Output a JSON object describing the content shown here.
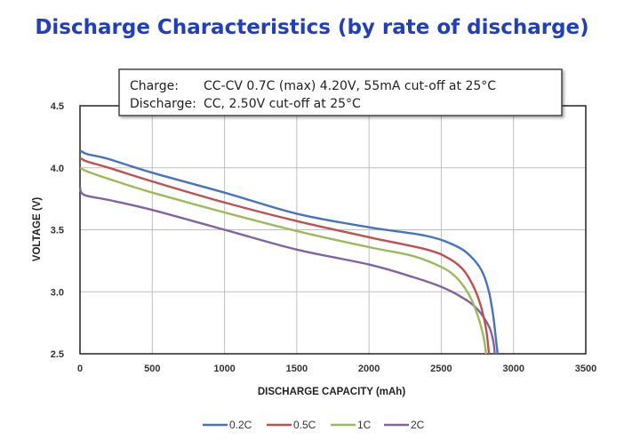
{
  "page_title": "Discharge Characteristics (by rate of discharge)",
  "note": {
    "line1_label": "Charge:",
    "line1_value": "CC-CV 0.7C (max) 4.20V, 55mA cut-off at 25°C",
    "line2_label": "Discharge:",
    "line2_value": "CC, 2.50V cut-off at 25°C"
  },
  "chart_data": {
    "type": "line",
    "title": "Discharge Characteristics (by rate of discharge)",
    "xlabel": "DISCHARGE CAPACITY (mAh)",
    "ylabel": "VOLTAGE (V)",
    "xlim": [
      0,
      3500
    ],
    "ylim": [
      2.5,
      4.5
    ],
    "xticks": [
      "0",
      "500",
      "1000",
      "1500",
      "2000",
      "2500",
      "3000",
      "3500"
    ],
    "yticks": [
      "2.5",
      "3.0",
      "3.5",
      "4.0",
      "4.5"
    ],
    "grid": true,
    "legend_position": "bottom",
    "series": [
      {
        "name": "0.2C",
        "color": "#4472c4",
        "points": [
          [
            0,
            4.14
          ],
          [
            50,
            4.11
          ],
          [
            200,
            4.07
          ],
          [
            500,
            3.96
          ],
          [
            1000,
            3.8
          ],
          [
            1500,
            3.63
          ],
          [
            2000,
            3.52
          ],
          [
            2400,
            3.45
          ],
          [
            2600,
            3.37
          ],
          [
            2700,
            3.29
          ],
          [
            2780,
            3.17
          ],
          [
            2830,
            3.0
          ],
          [
            2860,
            2.8
          ],
          [
            2880,
            2.6
          ],
          [
            2890,
            2.5
          ]
        ]
      },
      {
        "name": "0.5C",
        "color": "#c0504d",
        "points": [
          [
            0,
            4.08
          ],
          [
            50,
            4.05
          ],
          [
            200,
            4.0
          ],
          [
            500,
            3.89
          ],
          [
            1000,
            3.72
          ],
          [
            1500,
            3.57
          ],
          [
            2000,
            3.44
          ],
          [
            2400,
            3.34
          ],
          [
            2550,
            3.27
          ],
          [
            2650,
            3.18
          ],
          [
            2720,
            3.05
          ],
          [
            2770,
            2.9
          ],
          [
            2810,
            2.7
          ],
          [
            2830,
            2.5
          ]
        ]
      },
      {
        "name": "1C",
        "color": "#9bbb59",
        "points": [
          [
            0,
            4.0
          ],
          [
            50,
            3.97
          ],
          [
            200,
            3.91
          ],
          [
            500,
            3.8
          ],
          [
            1000,
            3.64
          ],
          [
            1500,
            3.49
          ],
          [
            2000,
            3.36
          ],
          [
            2300,
            3.29
          ],
          [
            2500,
            3.2
          ],
          [
            2600,
            3.12
          ],
          [
            2680,
            3.0
          ],
          [
            2740,
            2.85
          ],
          [
            2790,
            2.65
          ],
          [
            2810,
            2.5
          ]
        ]
      },
      {
        "name": "2C",
        "color": "#8064a2",
        "points": [
          [
            0,
            3.84
          ],
          [
            30,
            3.78
          ],
          [
            200,
            3.74
          ],
          [
            500,
            3.66
          ],
          [
            1000,
            3.5
          ],
          [
            1500,
            3.34
          ],
          [
            2000,
            3.22
          ],
          [
            2300,
            3.12
          ],
          [
            2500,
            3.04
          ],
          [
            2650,
            2.95
          ],
          [
            2750,
            2.86
          ],
          [
            2830,
            2.72
          ],
          [
            2860,
            2.6
          ],
          [
            2870,
            2.5
          ]
        ]
      }
    ]
  }
}
